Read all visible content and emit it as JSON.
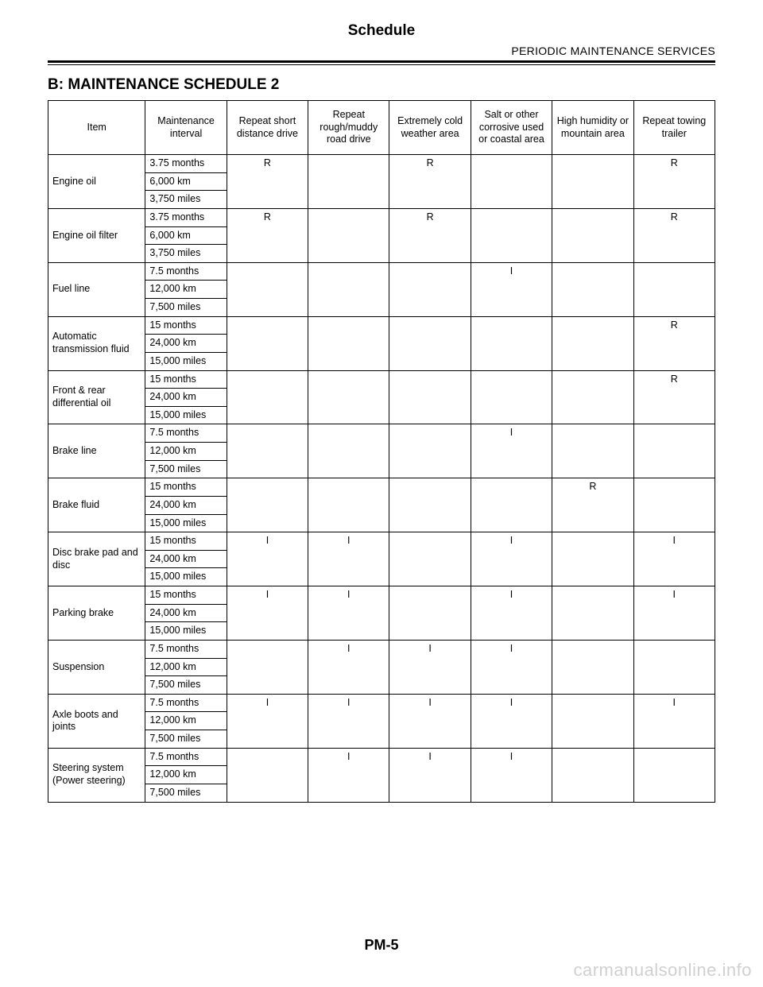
{
  "header": {
    "title": "Schedule",
    "subtitle": "PERIODIC MAINTENANCE SERVICES"
  },
  "section_heading": "B:  MAINTENANCE SCHEDULE 2",
  "columns": [
    "Item",
    "Maintenance interval",
    "Repeat short distance drive",
    "Repeat rough/muddy road drive",
    "Extremely cold weather area",
    "Salt or other corrosive used or coastal area",
    "High humidity or mountain area",
    "Repeat towing trailer"
  ],
  "rows": [
    {
      "item": "Engine oil",
      "intervals": [
        "3.75 months",
        "6,000 km",
        "3,750 miles"
      ],
      "vals": [
        "R",
        "",
        "R",
        "",
        "",
        "R"
      ]
    },
    {
      "item": "Engine oil filter",
      "intervals": [
        "3.75 months",
        "6,000 km",
        "3,750 miles"
      ],
      "vals": [
        "R",
        "",
        "R",
        "",
        "",
        "R"
      ]
    },
    {
      "item": "Fuel line",
      "intervals": [
        "7.5 months",
        "12,000 km",
        "7,500 miles"
      ],
      "vals": [
        "",
        "",
        "",
        "I",
        "",
        ""
      ]
    },
    {
      "item": "Automatic transmission fluid",
      "intervals": [
        "15 months",
        "24,000 km",
        "15,000 miles"
      ],
      "vals": [
        "",
        "",
        "",
        "",
        "",
        "R"
      ]
    },
    {
      "item": "Front & rear differential oil",
      "intervals": [
        "15 months",
        "24,000 km",
        "15,000 miles"
      ],
      "vals": [
        "",
        "",
        "",
        "",
        "",
        "R"
      ]
    },
    {
      "item": "Brake line",
      "intervals": [
        "7.5 months",
        "12,000 km",
        "7,500 miles"
      ],
      "vals": [
        "",
        "",
        "",
        "I",
        "",
        ""
      ]
    },
    {
      "item": "Brake fluid",
      "intervals": [
        "15 months",
        "24,000 km",
        "15,000 miles"
      ],
      "vals": [
        "",
        "",
        "",
        "",
        "R",
        ""
      ]
    },
    {
      "item": "Disc brake pad and disc",
      "intervals": [
        "15 months",
        "24,000 km",
        "15,000 miles"
      ],
      "vals": [
        "I",
        "I",
        "",
        "I",
        "",
        "I"
      ]
    },
    {
      "item": "Parking brake",
      "intervals": [
        "15 months",
        "24,000 km",
        "15,000 miles"
      ],
      "vals": [
        "I",
        "I",
        "",
        "I",
        "",
        "I"
      ]
    },
    {
      "item": "Suspension",
      "intervals": [
        "7.5 months",
        "12,000 km",
        "7,500 miles"
      ],
      "vals": [
        "",
        "I",
        "I",
        "I",
        "",
        ""
      ]
    },
    {
      "item": "Axle boots and joints",
      "intervals": [
        "7.5 months",
        "12,000 km",
        "7,500 miles"
      ],
      "vals": [
        "I",
        "I",
        "I",
        "I",
        "",
        "I"
      ]
    },
    {
      "item": "Steering system (Power steering)",
      "intervals": [
        "7.5 months",
        "12,000 km",
        "7,500 miles"
      ],
      "vals": [
        "",
        "I",
        "I",
        "I",
        "",
        ""
      ]
    }
  ],
  "page_number": "PM-5",
  "watermark": "carmanualsonline.info"
}
